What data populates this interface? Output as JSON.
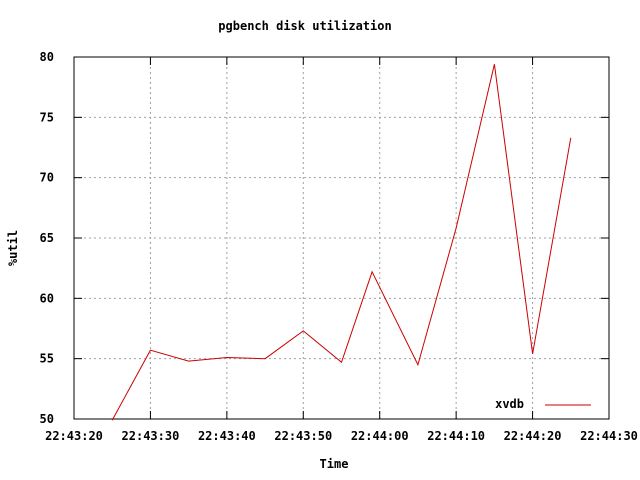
{
  "chart_data": {
    "type": "line",
    "title": "pgbench disk utilization",
    "xlabel": "Time",
    "ylabel": "%util",
    "grid": true,
    "legend_position": "bottom-right",
    "x_ticks": [
      "22:43:20",
      "22:43:30",
      "22:43:40",
      "22:43:50",
      "22:44:00",
      "22:44:10",
      "22:44:20",
      "22:44:30"
    ],
    "y_ticks": [
      "50",
      "55",
      "60",
      "65",
      "70",
      "75",
      "80"
    ],
    "xlim": [
      "22:43:20",
      "22:44:30"
    ],
    "ylim": [
      50,
      80
    ],
    "series": [
      {
        "name": "xvdb",
        "color": "#cc0000",
        "x": [
          "22:43:25",
          "22:43:30",
          "22:43:35",
          "22:43:40",
          "22:43:45",
          "22:43:50",
          "22:43:55",
          "22:43:59",
          "22:44:05",
          "22:44:10",
          "22:44:15",
          "22:44:20",
          "22:44:25"
        ],
        "values": [
          49.9,
          55.7,
          54.8,
          55.1,
          55.0,
          57.3,
          54.7,
          62.2,
          54.5,
          65.8,
          79.4,
          55.4,
          73.3
        ]
      }
    ]
  }
}
